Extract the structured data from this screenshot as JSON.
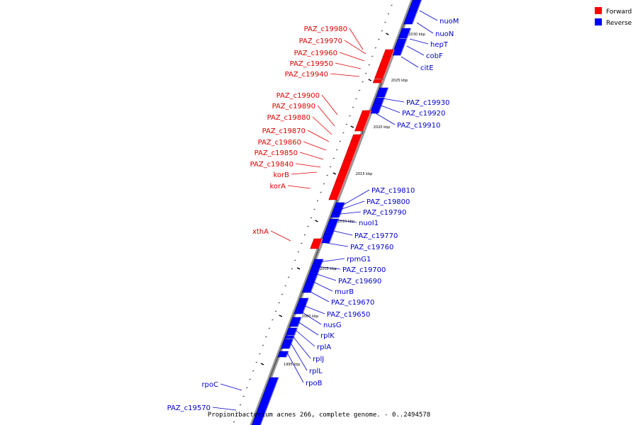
{
  "legend": [
    {
      "label": "Forward",
      "color": "#ff0000"
    },
    {
      "label": "Reverse",
      "color": "#0000ff"
    }
  ],
  "caption": "Propionibacterium acnes 266, complete genome. - 0..2494578",
  "kbp_markers": [
    "2030 kbp",
    "2025 kbp",
    "2020 kbp",
    "2015 kbp",
    "2010 kbp",
    "2005 kbp",
    "2000 kbp",
    "1995 kbp"
  ],
  "genes": {
    "forward": [
      "PAZ_c19980",
      "PAZ_c19970",
      "PAZ_c19960",
      "PAZ_c19950",
      "PAZ_c19940",
      "PAZ_c19900",
      "PAZ_c19890",
      "PAZ_c19880",
      "PAZ_c19870",
      "PAZ_c19860",
      "PAZ_c19850",
      "PAZ_c19840",
      "korB",
      "korA",
      "xthA"
    ],
    "reverse": [
      "nuoM",
      "nuoN",
      "hepT",
      "cobF",
      "citE",
      "PAZ_c19930",
      "PAZ_c19920",
      "PAZ_c19910",
      "PAZ_c19810",
      "PAZ_c19800",
      "PAZ_c19790",
      "nuoI1",
      "PAZ_c19770",
      "PAZ_c19760",
      "rpmG1",
      "PAZ_c19700",
      "PAZ_c19690",
      "murB",
      "PAZ_c19670",
      "PAZ_c19650",
      "nusG",
      "rplK",
      "rplA",
      "rplJ",
      "rplL",
      "rpoB",
      "rpoC",
      "PAZ_c19570"
    ]
  }
}
